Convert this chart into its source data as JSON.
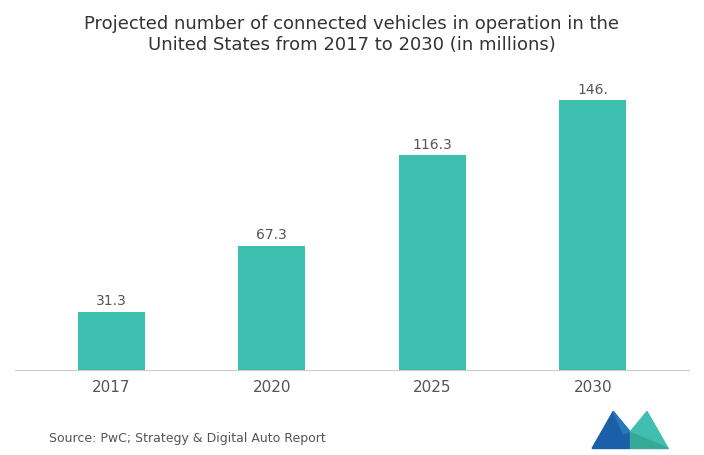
{
  "categories": [
    "2017",
    "2020",
    "2025",
    "2030"
  ],
  "values": [
    31.3,
    67.3,
    116.3,
    146.0
  ],
  "labels": [
    "31.3",
    "67.3",
    "116.3",
    "146."
  ],
  "bar_color": "#3DBFB0",
  "title_line1": "Projected number of connected vehicles in operation in the",
  "title_line2": "United States from 2017 to 2030 (in millions)",
  "source_text": "Source: PwC; Strategy & Digital Auto Report",
  "background_color": "#ffffff",
  "title_color": "#333333",
  "label_color": "#555555",
  "tick_color": "#555555",
  "ylim": [
    0,
    165
  ],
  "title_fontsize": 13,
  "label_fontsize": 10,
  "tick_fontsize": 11,
  "source_fontsize": 9
}
